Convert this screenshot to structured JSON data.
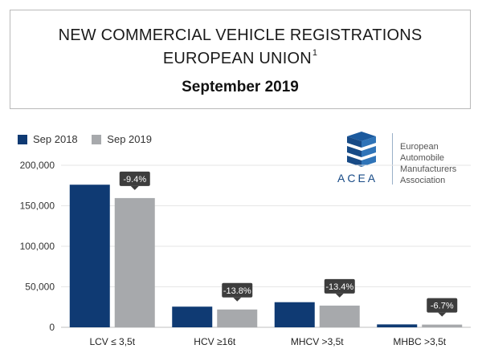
{
  "header": {
    "line1": "NEW COMMERCIAL VEHICLE REGISTRATIONS",
    "line2": "EUROPEAN UNION",
    "line2_sup": "1",
    "subtitle": "September 2019"
  },
  "legend": {
    "items": [
      {
        "label": "Sep 2018",
        "color": "#0f3a73"
      },
      {
        "label": "Sep 2019",
        "color": "#a7a9ac"
      }
    ]
  },
  "logo": {
    "word": "ACEA",
    "lines": [
      "European",
      "Automobile",
      "Manufacturers",
      "Association"
    ],
    "color": "#174a86"
  },
  "chart_data": {
    "type": "bar",
    "categories": [
      "LCV ≤ 3,5t",
      "HCV ≥16t",
      "MHCV >3,5t",
      "MHBC >3,5t"
    ],
    "series": [
      {
        "name": "Sep 2018",
        "values": [
          176000,
          25500,
          31000,
          3600
        ]
      },
      {
        "name": "Sep 2019",
        "values": [
          159500,
          22000,
          26800,
          3350
        ]
      }
    ],
    "changes": [
      "-9.4%",
      "-13.8%",
      "-13.4%",
      "-6.7%"
    ],
    "yticks": [
      "0",
      "50,000",
      "100,000",
      "150,000",
      "200,000"
    ],
    "ylim": [
      0,
      200000
    ],
    "title": "",
    "xlabel": "",
    "ylabel": ""
  }
}
